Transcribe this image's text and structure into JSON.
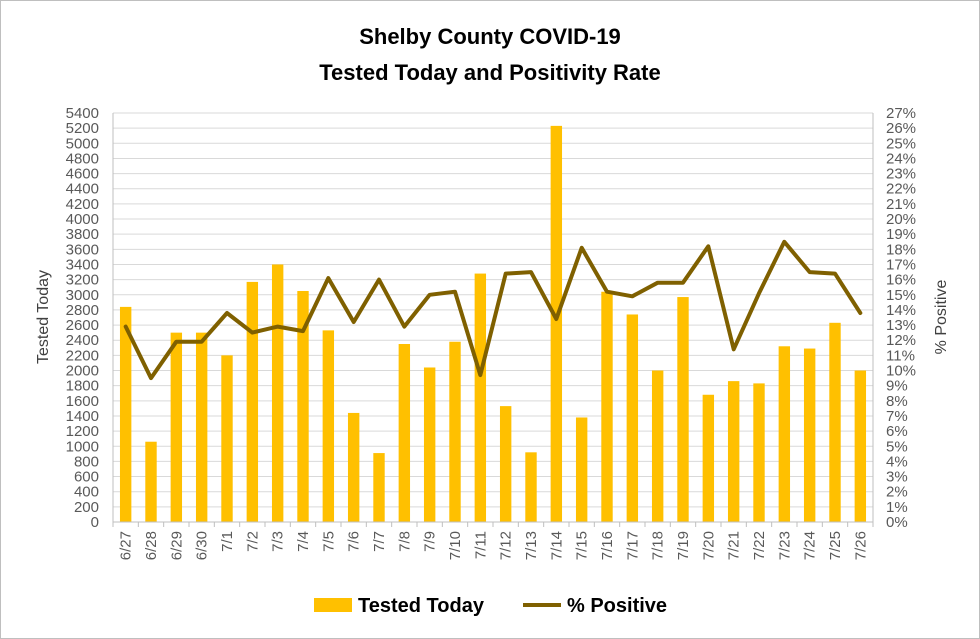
{
  "chart_data": {
    "type": "bar",
    "title": "Shelby County COVID-19",
    "subtitle": "Tested Today and Positivity Rate",
    "categories": [
      "6/27",
      "6/28",
      "6/29",
      "6/30",
      "7/1",
      "7/2",
      "7/3",
      "7/4",
      "7/5",
      "7/6",
      "7/7",
      "7/8",
      "7/9",
      "7/10",
      "7/11",
      "7/12",
      "7/13",
      "7/14",
      "7/15",
      "7/16",
      "7/17",
      "7/18",
      "7/19",
      "7/20",
      "7/21",
      "7/22",
      "7/23",
      "7/24",
      "7/25",
      "7/26"
    ],
    "series": [
      {
        "name": "Tested Today",
        "type": "bar",
        "axis": "left",
        "color": "#FFC000",
        "values": [
          2840,
          1060,
          2500,
          2500,
          2200,
          3170,
          3400,
          3050,
          2530,
          1440,
          910,
          2350,
          2040,
          2380,
          3280,
          1530,
          920,
          5230,
          1380,
          3040,
          2740,
          2000,
          2970,
          1680,
          1860,
          1830,
          2320,
          2290,
          2630,
          2000
        ]
      },
      {
        "name": "% Positive",
        "type": "line",
        "axis": "right",
        "color": "#7F6000",
        "values": [
          12.9,
          9.5,
          11.9,
          11.9,
          13.8,
          12.5,
          12.9,
          12.6,
          16.1,
          13.2,
          16.0,
          12.9,
          15.0,
          15.2,
          9.7,
          16.4,
          16.5,
          13.4,
          18.1,
          15.2,
          14.9,
          15.8,
          15.8,
          18.2,
          11.4,
          15.1,
          18.5,
          16.5,
          16.4,
          13.8
        ]
      }
    ],
    "yleft": {
      "label": "Tested Today",
      "ylim": [
        0,
        5400
      ],
      "ticks": [
        "0",
        "200",
        "400",
        "600",
        "800",
        "1000",
        "1200",
        "1400",
        "1600",
        "1800",
        "2000",
        "2200",
        "2400",
        "2600",
        "2800",
        "3000",
        "3200",
        "3400",
        "3600",
        "3800",
        "4000",
        "4200",
        "4400",
        "4600",
        "4800",
        "5000",
        "5200",
        "5400"
      ]
    },
    "yright": {
      "label": "% Positive",
      "ylim": [
        0,
        27
      ],
      "ticks": [
        "0%",
        "1%",
        "2%",
        "3%",
        "4%",
        "5%",
        "6%",
        "7%",
        "8%",
        "9%",
        "10%",
        "11%",
        "12%",
        "13%",
        "14%",
        "15%",
        "16%",
        "17%",
        "18%",
        "19%",
        "20%",
        "21%",
        "22%",
        "23%",
        "24%",
        "25%",
        "26%",
        "27%"
      ]
    },
    "grid": true,
    "legend": "bottom",
    "legend_entries": [
      "Tested Today",
      "% Positive"
    ]
  }
}
